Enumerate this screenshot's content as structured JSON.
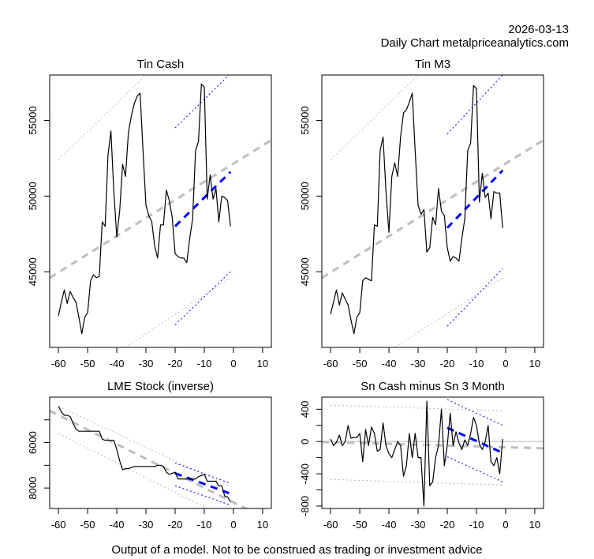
{
  "header": {
    "date": "2026-03-13",
    "subtitle": "Daily Chart metalpriceanalytics.com"
  },
  "footer": {
    "disclaimer": "Output of a model. Not to be construed as trading or investment advice"
  },
  "colors": {
    "price_line": "#000000",
    "long_trend": "#bebebe",
    "short_trend": "#0000ff",
    "zero_line": "#bebebe"
  },
  "chart_data": [
    {
      "id": "tin-cash",
      "type": "line",
      "title": "Tin Cash",
      "xlabel": "",
      "ylabel": "",
      "xlim": [
        -63,
        13
      ],
      "ylim": [
        40000,
        58000
      ],
      "x_ticks": [
        -60,
        -50,
        -40,
        -30,
        -20,
        -10,
        0,
        10
      ],
      "y_ticks": [
        45000,
        50000,
        55000
      ],
      "grid": false,
      "x": [
        -60,
        -59,
        -58,
        -57,
        -56,
        -55,
        -54,
        -53,
        -52,
        -51,
        -50,
        -49,
        -48,
        -47,
        -46,
        -45,
        -44,
        -43,
        -42,
        -41,
        -40,
        -39,
        -38,
        -37,
        -36,
        -35,
        -34,
        -33,
        -32,
        -31,
        -30,
        -29,
        -28,
        -27,
        -26,
        -25,
        -24,
        -23,
        -22,
        -21,
        -20,
        -19,
        -18,
        -17,
        -16,
        -15,
        -14,
        -13,
        -12,
        -11,
        -10,
        -9,
        -8,
        -7,
        -6,
        -5,
        -4,
        -3,
        -2,
        -1
      ],
      "series": [
        {
          "name": "Tin Cash",
          "style": "solid",
          "values": [
            42100,
            43000,
            43800,
            42900,
            43700,
            43300,
            43000,
            42000,
            40900,
            42000,
            42300,
            44400,
            44800,
            44600,
            44700,
            48300,
            48000,
            52700,
            54300,
            50300,
            47300,
            49000,
            52100,
            51300,
            54200,
            55300,
            56100,
            56600,
            56800,
            53000,
            49400,
            48700,
            48300,
            46700,
            45900,
            48100,
            48100,
            50400,
            49700,
            48600,
            46200,
            46000,
            45900,
            45900,
            45600,
            47200,
            48500,
            53000,
            53600,
            57400,
            57200,
            49800,
            51400,
            49800,
            50500,
            48300,
            50000,
            49900,
            49700,
            48000
          ]
        }
      ],
      "trend_lines": [
        {
          "name": "long-trend",
          "style": "dashed-thick",
          "color": "#bebebe",
          "from": [
            -63,
            44600
          ],
          "to": [
            13,
            53700
          ]
        },
        {
          "name": "long-upper-band",
          "style": "dotted",
          "color": "#bebebe",
          "from": [
            -60,
            52400
          ],
          "to": [
            -30,
            58000
          ]
        },
        {
          "name": "long-lower-band",
          "style": "dotted",
          "color": "#bebebe",
          "from": [
            -37,
            40000
          ],
          "to": [
            -1,
            44600
          ]
        },
        {
          "name": "short-trend",
          "style": "dashed-thick",
          "color": "#0000ff",
          "from": [
            -20,
            48000
          ],
          "to": [
            -1,
            51600
          ]
        },
        {
          "name": "short-upper-band",
          "style": "dotted",
          "color": "#0000ff",
          "from": [
            -20,
            54500
          ],
          "to": [
            -1,
            58100
          ]
        },
        {
          "name": "short-lower-band",
          "style": "dotted",
          "color": "#0000ff",
          "from": [
            -20,
            41500
          ],
          "to": [
            -1,
            45000
          ]
        }
      ]
    },
    {
      "id": "tin-m3",
      "type": "line",
      "title": "Tin M3",
      "xlabel": "",
      "ylabel": "",
      "xlim": [
        -63,
        13
      ],
      "ylim": [
        40000,
        58000
      ],
      "x_ticks": [
        -60,
        -50,
        -40,
        -30,
        -20,
        -10,
        0,
        10
      ],
      "y_ticks": [
        45000,
        50000,
        55000
      ],
      "grid": false,
      "x": [
        -60,
        -59,
        -58,
        -57,
        -56,
        -55,
        -54,
        -53,
        -52,
        -51,
        -50,
        -49,
        -48,
        -47,
        -46,
        -45,
        -44,
        -43,
        -42,
        -41,
        -40,
        -39,
        -38,
        -37,
        -36,
        -35,
        -34,
        -33,
        -32,
        -31,
        -30,
        -29,
        -28,
        -27,
        -26,
        -25,
        -24,
        -23,
        -22,
        -21,
        -20,
        -19,
        -18,
        -17,
        -16,
        -15,
        -14,
        -13,
        -12,
        -11,
        -10,
        -9,
        -8,
        -7,
        -6,
        -5,
        -4,
        -3,
        -2,
        -1
      ],
      "series": [
        {
          "name": "Tin M3",
          "style": "solid",
          "values": [
            42200,
            43000,
            43800,
            42800,
            43600,
            43200,
            42800,
            41800,
            40900,
            42000,
            42300,
            44400,
            44600,
            44500,
            44400,
            48100,
            48000,
            53000,
            53900,
            50300,
            47600,
            51300,
            52200,
            51300,
            53900,
            55500,
            55700,
            56200,
            56800,
            53000,
            49400,
            48800,
            49100,
            46300,
            46600,
            48600,
            48100,
            50500,
            49000,
            48700,
            46600,
            45700,
            46000,
            45900,
            45700,
            47200,
            48500,
            53000,
            53500,
            57300,
            57100,
            49600,
            51500,
            49900,
            50200,
            48500,
            50300,
            50200,
            50200,
            47900
          ]
        }
      ],
      "trend_lines": [
        {
          "name": "long-trend",
          "style": "dashed-thick",
          "color": "#bebebe",
          "from": [
            -63,
            44600
          ],
          "to": [
            13,
            53700
          ]
        },
        {
          "name": "long-upper-band",
          "style": "dotted",
          "color": "#bebebe",
          "from": [
            -60,
            52400
          ],
          "to": [
            -30,
            58000
          ]
        },
        {
          "name": "long-lower-band",
          "style": "dotted",
          "color": "#bebebe",
          "from": [
            -38,
            40000
          ],
          "to": [
            -1,
            44600
          ]
        },
        {
          "name": "short-trend",
          "style": "dashed-thick",
          "color": "#0000ff",
          "from": [
            -20,
            47900
          ],
          "to": [
            -1,
            51700
          ]
        },
        {
          "name": "short-upper-band",
          "style": "dotted",
          "color": "#0000ff",
          "from": [
            -20,
            54100
          ],
          "to": [
            -1,
            58000
          ]
        },
        {
          "name": "short-lower-band",
          "style": "dotted",
          "color": "#0000ff",
          "from": [
            -20,
            41400
          ],
          "to": [
            -1,
            45200
          ]
        }
      ]
    },
    {
      "id": "lme-stock",
      "type": "line",
      "title": "LME Stock (inverse)",
      "xlabel": "",
      "ylabel": "",
      "inverted_y": true,
      "xlim": [
        -63,
        13
      ],
      "ylim": [
        8900,
        4000
      ],
      "x_ticks": [
        -60,
        -50,
        -40,
        -30,
        -20,
        -10,
        0,
        10
      ],
      "y_ticks": [
        5000,
        6000,
        7000,
        8000
      ],
      "y_tick_labels": [
        "",
        "6000",
        "",
        "8000"
      ],
      "grid": false,
      "x": [
        -60,
        -59,
        -58,
        -57,
        -56,
        -55,
        -54,
        -53,
        -52,
        -51,
        -50,
        -49,
        -48,
        -47,
        -46,
        -45,
        -44,
        -43,
        -42,
        -41,
        -40,
        -39,
        -38,
        -37,
        -36,
        -35,
        -34,
        -33,
        -32,
        -31,
        -30,
        -29,
        -28,
        -27,
        -26,
        -25,
        -24,
        -23,
        -22,
        -21,
        -20,
        -19,
        -18,
        -17,
        -16,
        -15,
        -14,
        -13,
        -12,
        -11,
        -10,
        -9,
        -8,
        -7,
        -6,
        -5,
        -4,
        -3,
        -2,
        -1
      ],
      "series": [
        {
          "name": "LME Stock",
          "style": "solid",
          "values": [
            4400,
            4650,
            4800,
            4800,
            4850,
            5150,
            5400,
            5500,
            5500,
            5500,
            5500,
            5500,
            5500,
            5500,
            5500,
            5850,
            5900,
            5900,
            5900,
            5900,
            6300,
            6800,
            7200,
            7150,
            7150,
            7100,
            7050,
            7050,
            7050,
            7050,
            7050,
            7050,
            7050,
            7050,
            7000,
            7000,
            7050,
            7300,
            7400,
            7350,
            7300,
            7600,
            7600,
            7600,
            7600,
            7600,
            7600,
            7600,
            7500,
            7450,
            7400,
            7700,
            7700,
            7700,
            7700,
            7900,
            7900,
            8350,
            8400,
            8600
          ]
        }
      ],
      "trend_lines": [
        {
          "name": "long-trend",
          "style": "dashed-thick",
          "color": "#bebebe",
          "from": [
            -63,
            4600
          ],
          "to": [
            5,
            8950
          ]
        },
        {
          "name": "long-upper-band",
          "style": "dotted",
          "color": "#bebebe",
          "from": [
            -60,
            4400
          ],
          "to": [
            -1,
            7950
          ]
        },
        {
          "name": "long-lower-band",
          "style": "dotted",
          "color": "#bebebe",
          "from": [
            -60,
            5600
          ],
          "to": [
            -9,
            8900
          ]
        },
        {
          "name": "short-trend",
          "style": "dashed-thick",
          "color": "#0000ff",
          "from": [
            -20,
            7350
          ],
          "to": [
            -1,
            8250
          ]
        },
        {
          "name": "short-upper-band",
          "style": "dotted",
          "color": "#0000ff",
          "from": [
            -20,
            6900
          ],
          "to": [
            -1,
            7800
          ]
        },
        {
          "name": "short-lower-band",
          "style": "dotted",
          "color": "#0000ff",
          "from": [
            -20,
            7900
          ],
          "to": [
            -1,
            8750
          ]
        }
      ]
    },
    {
      "id": "sn-spread",
      "type": "line",
      "title": "Sn Cash minus Sn 3 Month",
      "xlabel": "",
      "ylabel": "",
      "xlim": [
        -63,
        13
      ],
      "ylim": [
        -830,
        550
      ],
      "x_ticks": [
        -60,
        -50,
        -40,
        -30,
        -20,
        -10,
        0,
        10
      ],
      "y_ticks": [
        -800,
        -600,
        -400,
        -200,
        0,
        200,
        400
      ],
      "y_tick_labels": [
        "-800",
        "",
        "-400",
        "",
        "0",
        "",
        "400"
      ],
      "grid": false,
      "x": [
        -60,
        -59,
        -58,
        -57,
        -56,
        -55,
        -54,
        -53,
        -52,
        -51,
        -50,
        -49,
        -48,
        -47,
        -46,
        -45,
        -44,
        -43,
        -42,
        -41,
        -40,
        -39,
        -38,
        -37,
        -36,
        -35,
        -34,
        -33,
        -32,
        -31,
        -30,
        -29,
        -28,
        -27,
        -26,
        -25,
        -24,
        -23,
        -22,
        -21,
        -20,
        -19,
        -18,
        -17,
        -16,
        -15,
        -14,
        -13,
        -12,
        -11,
        -10,
        -9,
        -8,
        -7,
        -6,
        -5,
        -4,
        -3,
        -2,
        -1
      ],
      "series": [
        {
          "name": "Sn Cash minus Sn 3 Month",
          "style": "solid",
          "values": [
            30,
            -50,
            -10,
            80,
            -50,
            0,
            200,
            40,
            50,
            50,
            100,
            -250,
            150,
            -50,
            180,
            100,
            -120,
            -100,
            230,
            -50,
            -150,
            -200,
            -100,
            0,
            -50,
            -430,
            -300,
            100,
            -200,
            100,
            -200,
            -200,
            -800,
            500,
            -550,
            -500,
            -200,
            -50,
            400,
            -300,
            -50,
            350,
            -50,
            120,
            -20,
            -100,
            20,
            -50,
            100,
            300,
            200,
            -30,
            -100,
            0,
            200,
            -250,
            -300,
            -200,
            -400,
            30
          ]
        }
      ],
      "trend_lines": [
        {
          "name": "zero-line",
          "style": "solid",
          "color": "#bebebe",
          "from": [
            -63,
            0
          ],
          "to": [
            13,
            0
          ]
        },
        {
          "name": "long-trend",
          "style": "dashed-thick",
          "color": "#bebebe",
          "from": [
            -63,
            -5
          ],
          "to": [
            13,
            -85
          ]
        },
        {
          "name": "long-upper-band",
          "style": "dotted",
          "color": "#bebebe",
          "from": [
            -60,
            450
          ],
          "to": [
            -1,
            380
          ]
        },
        {
          "name": "long-lower-band",
          "style": "dotted",
          "color": "#bebebe",
          "from": [
            -60,
            -470
          ],
          "to": [
            -1,
            -540
          ]
        },
        {
          "name": "short-trend",
          "style": "dashed-thick",
          "color": "#0000ff",
          "from": [
            -20,
            170
          ],
          "to": [
            -1,
            -140
          ]
        },
        {
          "name": "short-upper-band",
          "style": "dotted",
          "color": "#0000ff",
          "from": [
            -20,
            520
          ],
          "to": [
            -1,
            200
          ]
        },
        {
          "name": "short-lower-band",
          "style": "dotted",
          "color": "#0000ff",
          "from": [
            -20,
            -190
          ],
          "to": [
            -1,
            -500
          ]
        }
      ]
    }
  ]
}
